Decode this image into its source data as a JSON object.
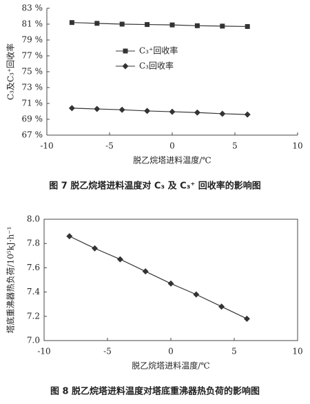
{
  "chart_data": [
    {
      "type": "line",
      "caption": "图 7   脱乙烷塔进料温度对 C₃ 及 C₃⁺ 回收率的影响图",
      "x_label": "脱乙烷塔进料温度/℃",
      "y_label": "C₃及C₃⁺回收率",
      "x": [
        -8,
        -6,
        -4,
        -2,
        0,
        2,
        4,
        6
      ],
      "series": [
        {
          "name": "C₃⁺回收率",
          "color": "#333333",
          "marker": "square",
          "values": [
            81.2,
            81.1,
            81.0,
            80.95,
            80.9,
            80.8,
            80.75,
            80.7
          ]
        },
        {
          "name": "C₃回收率",
          "color": "#333333",
          "marker": "diamond",
          "values": [
            70.4,
            70.3,
            70.2,
            70.05,
            69.95,
            69.85,
            69.7,
            69.6
          ]
        }
      ],
      "xlim": [
        -10,
        10
      ],
      "xticks": [
        -10,
        -5,
        0,
        5,
        10
      ],
      "ylim": [
        67,
        83
      ],
      "yticks": [
        {
          "value": 67,
          "label": "67 %"
        },
        {
          "value": 69,
          "label": "69 %"
        },
        {
          "value": 71,
          "label": "71 %"
        },
        {
          "value": 73,
          "label": "73 %"
        },
        {
          "value": 75,
          "label": "75 %"
        },
        {
          "value": 77,
          "label": "77 %"
        },
        {
          "value": 79,
          "label": "79 %"
        },
        {
          "value": 81,
          "label": "81 %"
        },
        {
          "value": 83,
          "label": "83 %"
        }
      ],
      "legend": "upper center",
      "frame": false
    },
    {
      "type": "line",
      "caption": "图 8   脱乙烷塔进料温度对塔底重沸器热负荷的影响图",
      "x_label": "脱乙烷塔进料温度/℃",
      "y_label": "塔底重沸器热负荷/10⁵kJ·h⁻¹",
      "x": [
        -8,
        -6,
        -4,
        -2,
        0,
        2,
        4,
        6
      ],
      "values": [
        7.86,
        7.76,
        7.67,
        7.57,
        7.47,
        7.38,
        7.28,
        7.18
      ],
      "color": "#333333",
      "marker": "diamond",
      "xlim": [
        -10,
        10
      ],
      "xticks": [
        -10,
        -5,
        0,
        5,
        10
      ],
      "ylim": [
        7,
        8
      ],
      "yticks": [
        {
          "value": 7,
          "label": "7.0"
        },
        7.2,
        7.4,
        7.6,
        7.8,
        {
          "value": 8,
          "label": "8.0"
        }
      ],
      "frame": true
    }
  ]
}
